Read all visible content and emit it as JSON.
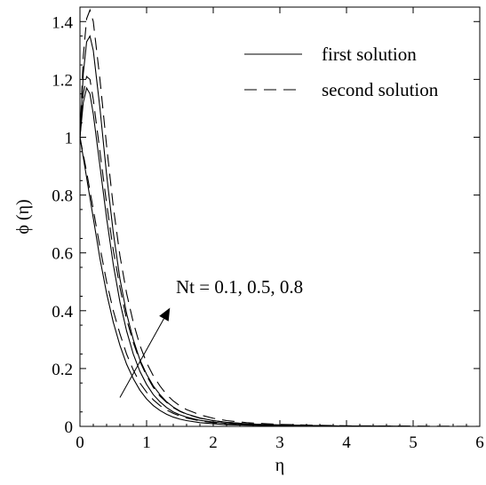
{
  "chart_data": {
    "type": "line",
    "xlabel": "η",
    "ylabel": "ϕ (η)",
    "xlim": [
      0,
      6
    ],
    "ylim": [
      0,
      1.45
    ],
    "x_ticks": [
      "0",
      "1",
      "2",
      "3",
      "4",
      "5",
      "6"
    ],
    "y_ticks": [
      "0",
      "0.2",
      "0.4",
      "0.6",
      "0.8",
      "1",
      "1.2",
      "1.4"
    ],
    "grid": false,
    "legend": {
      "placement": "top-right",
      "entries": [
        {
          "label": "first solution",
          "style": "solid"
        },
        {
          "label": "second solution",
          "style": "dashed"
        }
      ]
    },
    "annotation": {
      "text": "Nt = 0.1, 0.5, 0.8",
      "arrow_from": [
        0.6,
        0.1
      ],
      "arrow_to": [
        1.35,
        0.41
      ]
    },
    "series": [
      {
        "style": "solid",
        "x": [
          0,
          0.1,
          0.2,
          0.3,
          0.4,
          0.5,
          0.6,
          0.7,
          0.8,
          0.9,
          1.0,
          1.1,
          1.2,
          1.3,
          1.4,
          1.5,
          1.6,
          1.8,
          2.0,
          2.2,
          2.5,
          2.8,
          3.0,
          3.5,
          4.0,
          5.0,
          6.0
        ],
        "y": [
          1.0,
          0.86,
          0.72,
          0.58,
          0.46,
          0.36,
          0.28,
          0.215,
          0.165,
          0.125,
          0.095,
          0.072,
          0.055,
          0.042,
          0.032,
          0.025,
          0.02,
          0.013,
          0.009,
          0.006,
          0.004,
          0.003,
          0.002,
          0.001,
          0.001,
          0.0,
          0.0
        ]
      },
      {
        "style": "dashed",
        "x": [
          0,
          0.1,
          0.2,
          0.3,
          0.4,
          0.5,
          0.6,
          0.7,
          0.8,
          0.9,
          1.0,
          1.1,
          1.2,
          1.3,
          1.4,
          1.5,
          1.6,
          1.8,
          2.0,
          2.2,
          2.5,
          2.8,
          3.0,
          3.5,
          4.0,
          5.0,
          6.0
        ],
        "y": [
          1.0,
          0.88,
          0.75,
          0.62,
          0.5,
          0.4,
          0.32,
          0.25,
          0.195,
          0.15,
          0.118,
          0.092,
          0.072,
          0.057,
          0.045,
          0.036,
          0.029,
          0.019,
          0.013,
          0.009,
          0.006,
          0.004,
          0.003,
          0.002,
          0.001,
          0.0,
          0.0
        ]
      },
      {
        "style": "solid",
        "x": [
          0,
          0.05,
          0.1,
          0.15,
          0.2,
          0.3,
          0.4,
          0.5,
          0.6,
          0.7,
          0.8,
          0.9,
          1.0,
          1.1,
          1.2,
          1.3,
          1.4,
          1.5,
          1.6,
          1.8,
          2.0,
          2.2,
          2.5,
          2.8,
          3.0,
          3.5,
          4.0,
          5.0,
          6.0
        ],
        "y": [
          1.0,
          1.12,
          1.17,
          1.15,
          1.08,
          0.9,
          0.72,
          0.56,
          0.43,
          0.33,
          0.25,
          0.19,
          0.145,
          0.11,
          0.085,
          0.065,
          0.05,
          0.04,
          0.032,
          0.021,
          0.015,
          0.01,
          0.007,
          0.005,
          0.004,
          0.002,
          0.001,
          0.0,
          0.0
        ]
      },
      {
        "style": "dashed",
        "x": [
          0,
          0.05,
          0.1,
          0.15,
          0.2,
          0.3,
          0.4,
          0.5,
          0.6,
          0.7,
          0.8,
          0.9,
          1.0,
          1.1,
          1.2,
          1.3,
          1.4,
          1.5,
          1.6,
          1.8,
          2.0,
          2.2,
          2.5,
          2.8,
          3.0,
          3.5,
          4.0,
          5.0,
          6.0
        ],
        "y": [
          1.0,
          1.15,
          1.21,
          1.2,
          1.13,
          0.95,
          0.77,
          0.61,
          0.48,
          0.37,
          0.29,
          0.225,
          0.175,
          0.135,
          0.105,
          0.083,
          0.065,
          0.052,
          0.042,
          0.028,
          0.02,
          0.014,
          0.009,
          0.006,
          0.005,
          0.003,
          0.001,
          0.0,
          0.0
        ]
      },
      {
        "style": "solid",
        "x": [
          0,
          0.05,
          0.1,
          0.15,
          0.2,
          0.3,
          0.4,
          0.5,
          0.6,
          0.7,
          0.8,
          0.9,
          1.0,
          1.1,
          1.2,
          1.3,
          1.4,
          1.5,
          1.6,
          1.8,
          2.0,
          2.2,
          2.5,
          2.8,
          3.0,
          3.5,
          4.0,
          5.0,
          6.0
        ],
        "y": [
          1.0,
          1.22,
          1.33,
          1.35,
          1.3,
          1.1,
          0.87,
          0.67,
          0.51,
          0.39,
          0.3,
          0.23,
          0.18,
          0.14,
          0.11,
          0.085,
          0.067,
          0.053,
          0.043,
          0.029,
          0.02,
          0.014,
          0.009,
          0.006,
          0.005,
          0.003,
          0.001,
          0.0,
          0.0
        ]
      },
      {
        "style": "dashed",
        "x": [
          0,
          0.05,
          0.1,
          0.15,
          0.2,
          0.3,
          0.4,
          0.5,
          0.6,
          0.7,
          0.8,
          0.9,
          1.0,
          1.1,
          1.2,
          1.3,
          1.4,
          1.5,
          1.6,
          1.8,
          2.0,
          2.2,
          2.5,
          2.8,
          3.0,
          3.5,
          4.0,
          5.0,
          6.0
        ],
        "y": [
          1.0,
          1.28,
          1.41,
          1.44,
          1.4,
          1.2,
          0.97,
          0.76,
          0.59,
          0.46,
          0.36,
          0.28,
          0.22,
          0.175,
          0.14,
          0.11,
          0.088,
          0.071,
          0.058,
          0.04,
          0.028,
          0.02,
          0.013,
          0.009,
          0.007,
          0.004,
          0.002,
          0.001,
          0.0
        ]
      }
    ]
  }
}
